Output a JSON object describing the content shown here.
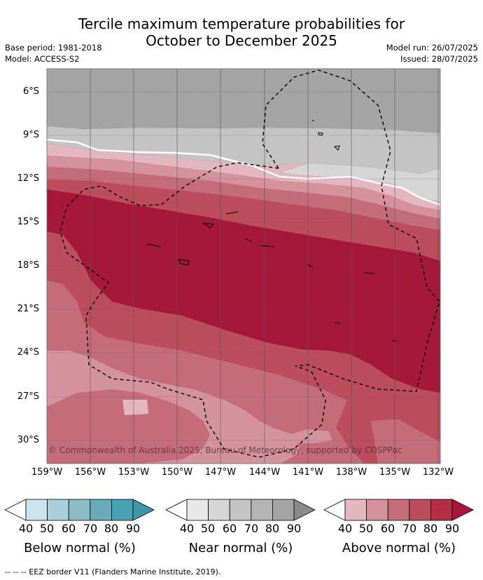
{
  "title_line1": "Tercile maximum temperature probabilities for",
  "title_line2": "October to December 2025",
  "base_period": "Base period: 1981-2018",
  "model": "Model: ACCESS-S2",
  "model_run": "Model run: 26/07/2025",
  "issued": "Issued: 28/07/2025",
  "copyright": "© Commonwealth of Australia 2025, Bureau of Meteorology, supported by COSPPac",
  "lat_labels": [
    "6°S",
    "9°S",
    "12°S",
    "15°S",
    "18°S",
    "21°S",
    "24°S",
    "27°S",
    "30°S"
  ],
  "lon_labels": [
    "159°W",
    "156°W",
    "153°W",
    "150°W",
    "147°W",
    "144°W",
    "141°W",
    "138°W",
    "135°W",
    "132°W"
  ],
  "colorbars": [
    {
      "name": "Below normal (%)",
      "ticks": [
        "40",
        "50",
        "60",
        "70",
        "80",
        "90"
      ],
      "colors": [
        "#ffffff",
        "#cbe3ea",
        "#a9cfd8",
        "#8abbc7",
        "#69aabb",
        "#49a2b3",
        "#3c97a9"
      ]
    },
    {
      "name": "Near normal (%)",
      "ticks": [
        "40",
        "50",
        "60",
        "70",
        "80",
        "90"
      ],
      "colors": [
        "#ffffff",
        "#e8e8e8",
        "#d6d6d6",
        "#c4c4c4",
        "#b4b4b4",
        "#a4a4a4",
        "#8a8a8a"
      ]
    },
    {
      "name": "Above normal (%)",
      "ticks": [
        "40",
        "50",
        "60",
        "70",
        "80",
        "90"
      ],
      "colors": [
        "#ffffff",
        "#e2b7bf",
        "#d4929d",
        "#c56c79",
        "#bb4d5d",
        "#b32d43",
        "#a5183a"
      ]
    }
  ],
  "footnote": "--  --  -- EEZ border V11 (Flanders Marine Institute, 2019)."
}
